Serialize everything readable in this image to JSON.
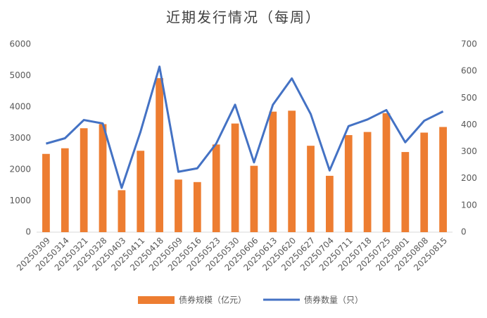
{
  "chart_data": {
    "type": "bar_line",
    "title": "近期发行情况（每周）",
    "categories": [
      "20250309",
      "20250314",
      "20250321",
      "20250328",
      "20250403",
      "20250411",
      "20250418",
      "20250509",
      "20250516",
      "20250523",
      "20250530",
      "20250606",
      "20250613",
      "20250620",
      "20250627",
      "20250704",
      "20250711",
      "20250718",
      "20250725",
      "20250801",
      "20250808",
      "20250815"
    ],
    "series": [
      {
        "name": "债券规模（亿元）",
        "color": "#ed7d31",
        "type": "bar",
        "values": [
          2500,
          2680,
          3320,
          3450,
          1340,
          2600,
          4920,
          1680,
          1600,
          2800,
          3470,
          2120,
          3850,
          3880,
          2760,
          1800,
          3100,
          3200,
          3800,
          2560,
          3180,
          3360
        ]
      },
      {
        "name": "债券数量（只）",
        "color": "#4472c4",
        "type": "line",
        "axis": "y2",
        "values": [
          330,
          350,
          418,
          405,
          165,
          375,
          617,
          225,
          238,
          330,
          475,
          260,
          475,
          573,
          440,
          230,
          395,
          420,
          455,
          335,
          415,
          450
        ]
      }
    ],
    "ylim": [
      0,
      6000
    ],
    "yticks": [
      0,
      1000,
      2000,
      3000,
      4000,
      5000,
      6000
    ],
    "y2lim": [
      0,
      700
    ],
    "y2ticks": [
      0,
      100,
      200,
      300,
      400,
      500,
      600,
      700
    ],
    "legend": "bottom"
  }
}
